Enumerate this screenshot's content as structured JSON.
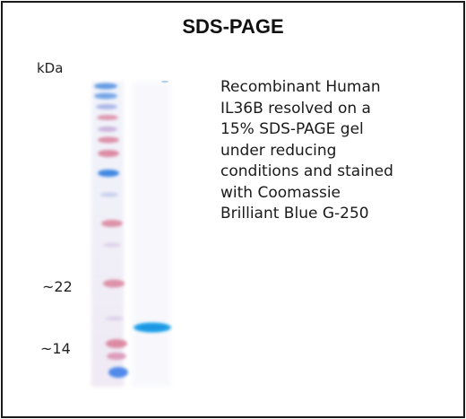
{
  "title": "SDS-PAGE",
  "unit_label": "kDa",
  "markers": [
    {
      "label": "~22"
    },
    {
      "label": "~14"
    }
  ],
  "description_lines": [
    "Recombinant Human",
    "IL36B resolved on a",
    "15% SDS-PAGE gel",
    "under reducing",
    "conditions and stained",
    "with Coomassie",
    "Brilliant Blue G-250"
  ],
  "colors": {
    "ladder_pink": "#d97a95",
    "ladder_blue": "#2f7fe0",
    "sample_band": "#1fa3ea",
    "border": "#1a1a1a"
  }
}
